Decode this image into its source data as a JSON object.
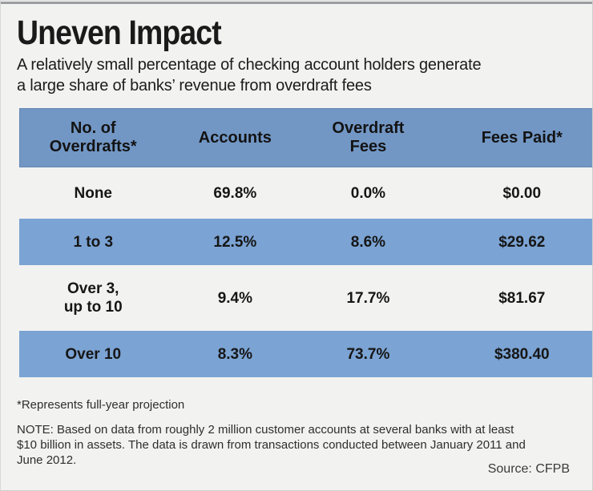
{
  "header": {
    "title": "Uneven Impact",
    "subtitle": "A relatively small percentage of checking account holders generate\na large share of banks’ revenue from overdraft fees"
  },
  "display": {
    "columns": [
      "No. of\nOverdrafts*",
      "Accounts",
      "Overdraft\nFees",
      "Fees Paid*"
    ],
    "rows": [
      {
        "cells": [
          "None",
          "69.8%",
          "0.0%",
          "$0.00"
        ]
      },
      {
        "cells": [
          "1 to 3",
          "12.5%",
          "8.6%",
          "$29.62"
        ]
      },
      {
        "cells": [
          "Over 3,\nup to 10",
          "9.4%",
          "17.7%",
          "$81.67"
        ]
      },
      {
        "cells": [
          "Over 10",
          "8.3%",
          "73.7%",
          "$380.40"
        ]
      }
    ]
  },
  "footnotes": {
    "projection": "*Represents full-year projection",
    "note": "NOTE: Based on data from roughly 2 million customer accounts at several banks with at least\n$10 billion in assets. The data is drawn from transactions conducted between January 2011 and\nJune 2012.",
    "source": "Source: CFPB"
  },
  "colors": {
    "page_background": "#f2f2f1",
    "header_blue": "#7297c5",
    "row_blue": "#7ba3d3",
    "top_band": "#9b9da0",
    "text": "#1a1a1a"
  },
  "chart_data": {
    "type": "table",
    "title": "Uneven Impact",
    "subtitle": "A relatively small percentage of checking account holders generate a large share of banks’ revenue from overdraft fees",
    "columns": [
      "No. of Overdrafts*",
      "Accounts",
      "Overdraft Fees",
      "Fees Paid*"
    ],
    "rows": [
      [
        "None",
        "69.8%",
        "0.0%",
        "$0.00"
      ],
      [
        "1 to 3",
        "12.5%",
        "8.6%",
        "$29.62"
      ],
      [
        "Over 3, up to 10",
        "9.4%",
        "17.7%",
        "$81.67"
      ],
      [
        "Over 10",
        "8.3%",
        "73.7%",
        "$380.40"
      ]
    ],
    "highlighted_rows": [
      1,
      3
    ],
    "notes": [
      "*Represents full-year projection",
      "NOTE: Based on data from roughly 2 million customer accounts at several banks with at least $10 billion in assets. The data is drawn from transactions conducted between January 2011 and June 2012.",
      "Source: CFPB"
    ]
  }
}
